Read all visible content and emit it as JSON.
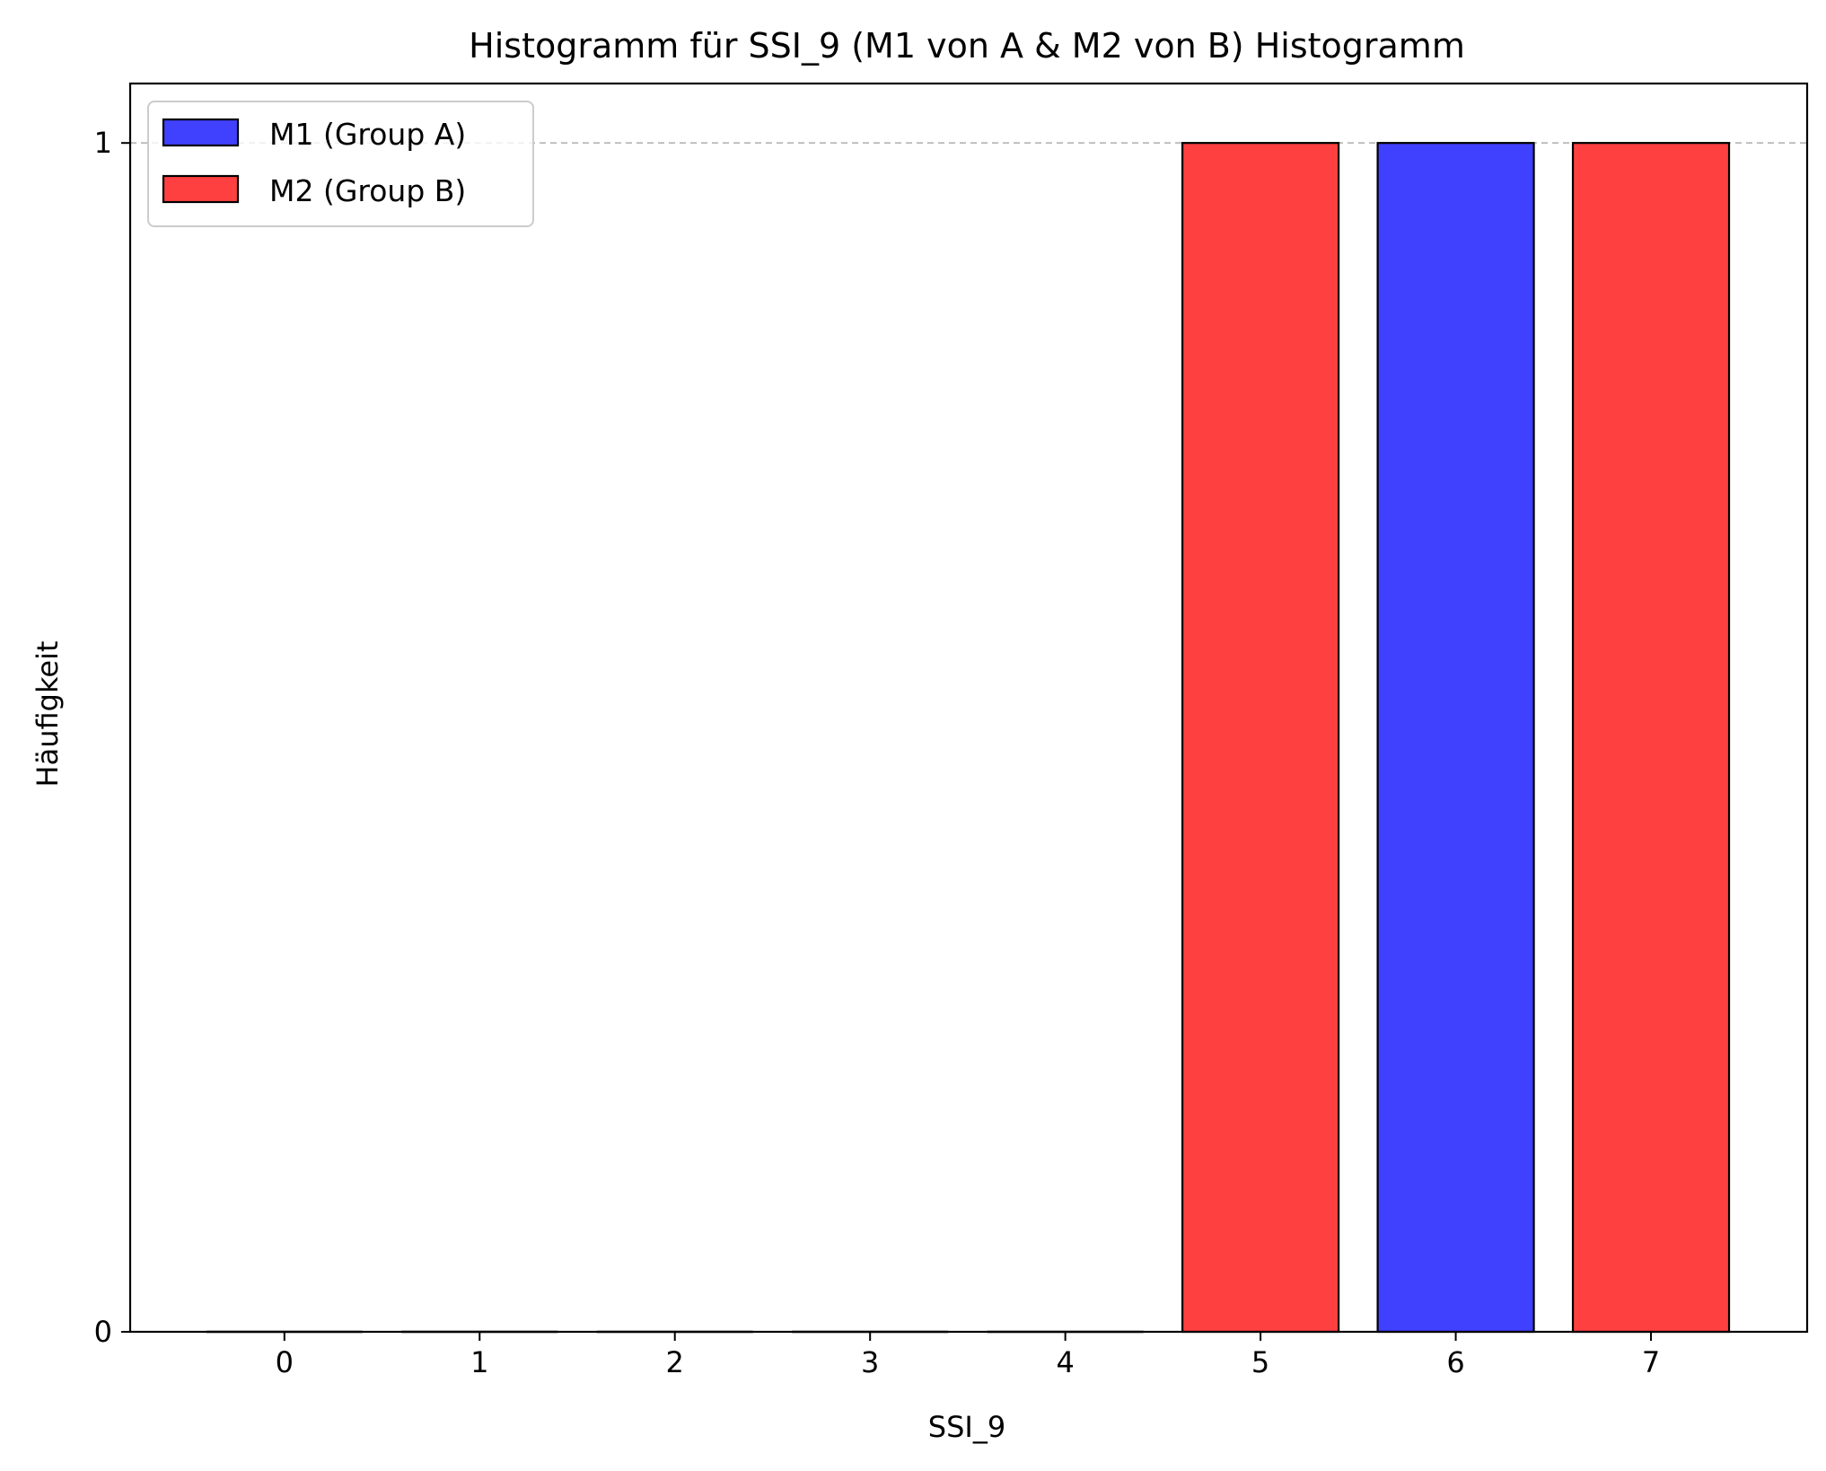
{
  "chart_data": {
    "type": "bar",
    "title": "Histogramm für SSI_9 (M1 von A & M2 von B) Histogramm",
    "xlabel": "SSI_9",
    "ylabel": "Häufigkeit",
    "categories": [
      "0",
      "1",
      "2",
      "3",
      "4",
      "5",
      "6",
      "7"
    ],
    "xlim": [
      -0.79,
      7.8
    ],
    "ylim": [
      0,
      1.05
    ],
    "yticks": [
      0,
      1
    ],
    "ytick_labels": [
      "0",
      "1"
    ],
    "grid": {
      "axis": "y",
      "style": "dashed"
    },
    "legend_position": "top-left",
    "series": [
      {
        "name": "M1 (Group A)",
        "color": "#4040ff",
        "values": [
          0,
          0,
          0,
          0,
          0,
          0,
          1,
          0
        ]
      },
      {
        "name": "M2 (Group B)",
        "color": "#ff4040",
        "values": [
          0,
          0,
          0,
          0,
          0,
          1,
          0,
          1
        ]
      }
    ]
  }
}
